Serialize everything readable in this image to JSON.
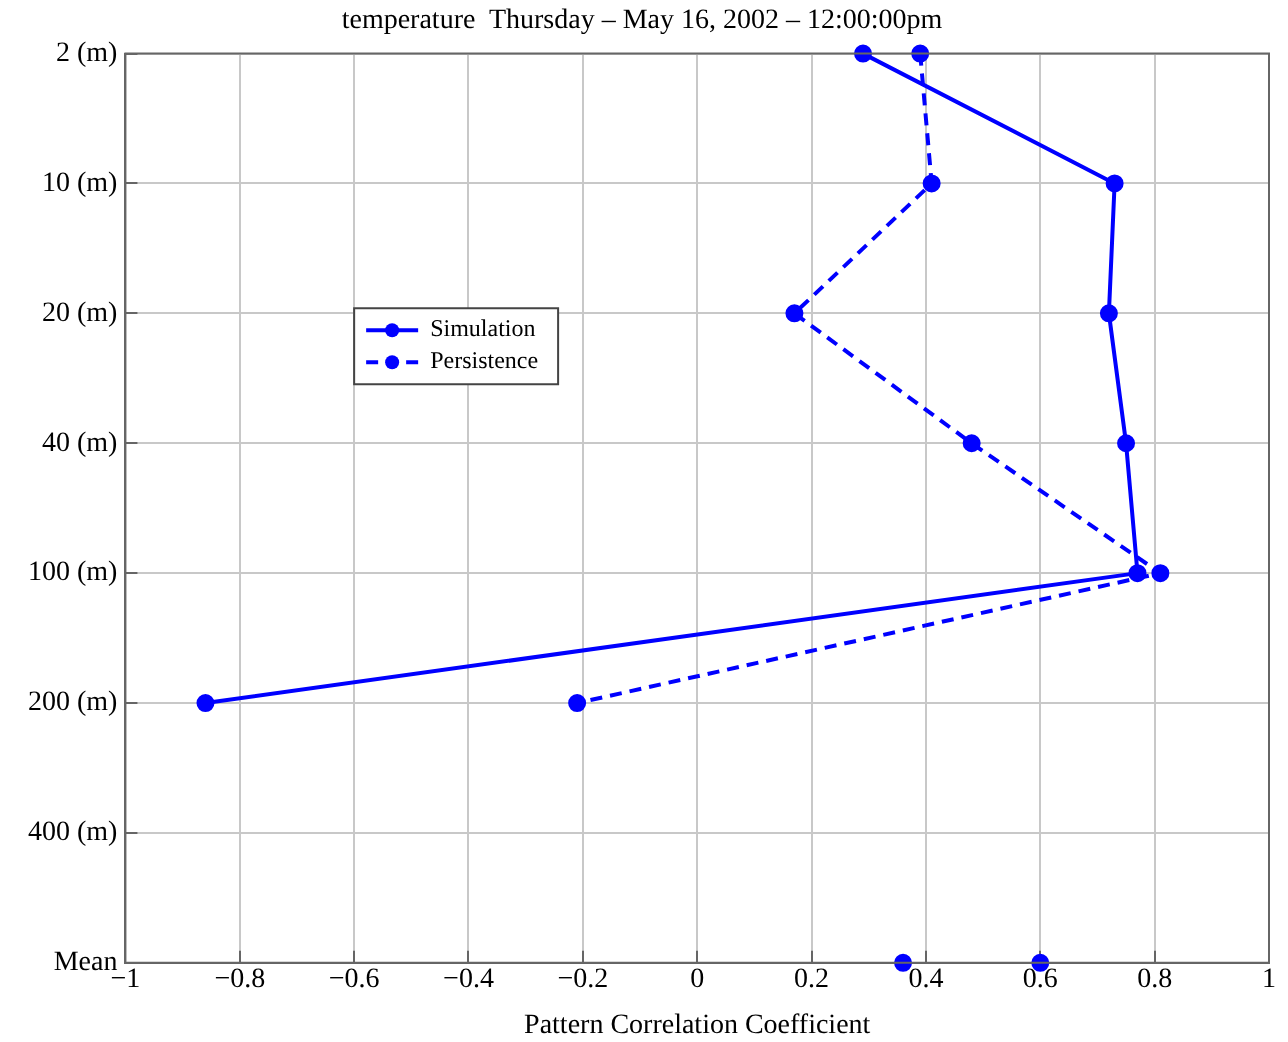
{
  "chart_data": {
    "type": "line",
    "title": "temperature  Thursday – May 16, 2002 – 12:00:00pm",
    "xlabel": "Pattern Correlation Coefficient",
    "orientation": "horizontal",
    "categories": [
      "2 (m)",
      "10 (m)",
      "20 (m)",
      "40 (m)",
      "100 (m)",
      "200 (m)",
      "400 (m)",
      "Mean"
    ],
    "series": [
      {
        "name": "Simulation",
        "color": "#0000ff",
        "line_style": "solid",
        "values": [
          0.29,
          0.73,
          0.72,
          0.75,
          0.77,
          -0.86,
          null,
          0.6
        ]
      },
      {
        "name": "Persistence",
        "color": "#0000ff",
        "line_style": "dashed",
        "values": [
          0.39,
          0.41,
          0.17,
          0.48,
          0.81,
          -0.21,
          null,
          0.36
        ]
      }
    ],
    "xlim": [
      -1,
      1
    ],
    "xticks": [
      -1,
      -0.8,
      -0.6,
      -0.4,
      -0.2,
      0,
      0.2,
      0.4,
      0.6,
      0.8,
      1
    ],
    "grid": true,
    "legend": "left",
    "marker": "circle"
  }
}
